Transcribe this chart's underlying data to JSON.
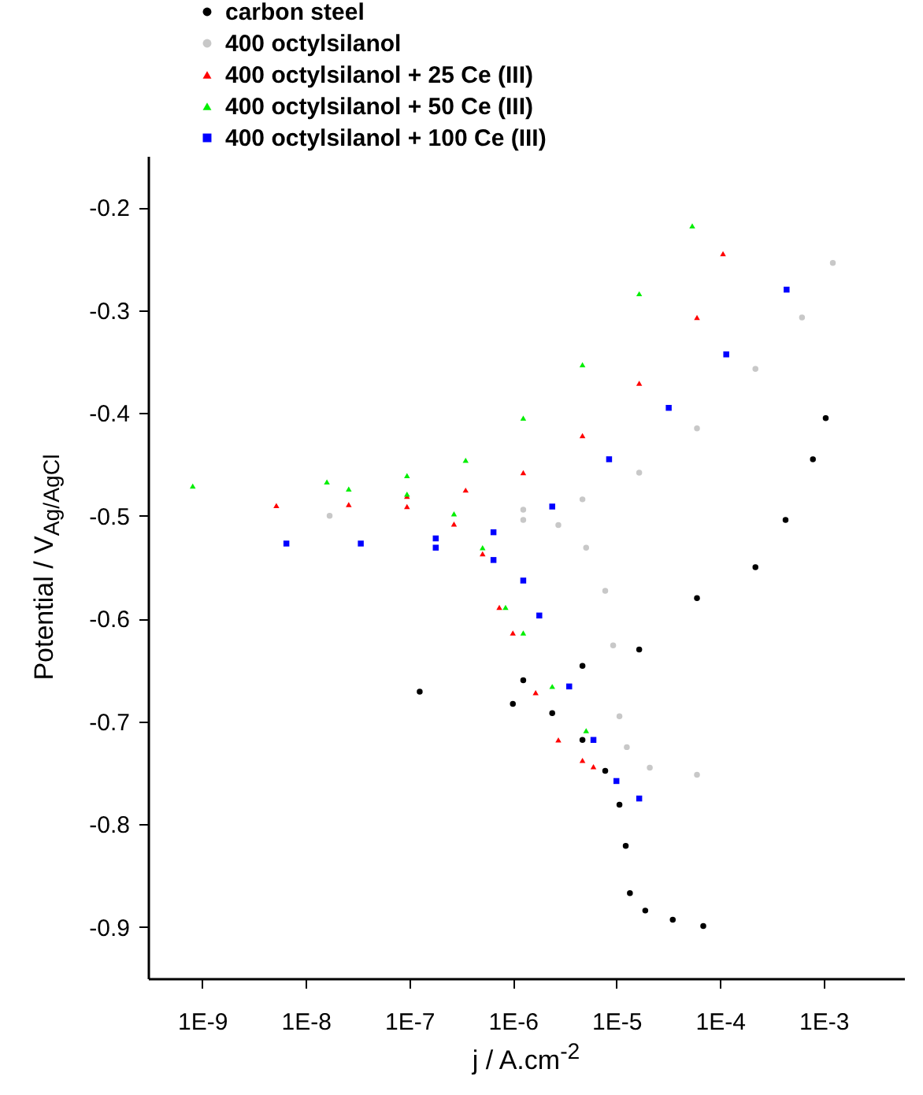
{
  "chart_data": {
    "type": "scatter",
    "xlabel": "j / A.cm$^{-2}$",
    "ylabel": "Potential / V$_{Ag/AgCl}$",
    "log": "x",
    "grid": false,
    "legend": "top",
    "xlim": [
      3e-10,
      0.006
    ],
    "ylim": [
      -0.95,
      -0.15
    ],
    "xticks": [
      {
        "value": 1e-09,
        "label": "1E-9"
      },
      {
        "value": 1e-08,
        "label": "1E-8"
      },
      {
        "value": 1e-07,
        "label": "1E-7"
      },
      {
        "value": 1e-06,
        "label": "1E-6"
      },
      {
        "value": 1e-05,
        "label": "1E-5"
      },
      {
        "value": 0.0001,
        "label": "1E-4"
      },
      {
        "value": 0.001,
        "label": "1E-3"
      }
    ],
    "yticks": [
      {
        "value": -0.9,
        "label": "-0.9"
      },
      {
        "value": -0.8,
        "label": "-0.8"
      },
      {
        "value": -0.7,
        "label": "-0.7"
      },
      {
        "value": -0.6,
        "label": "-0.6"
      },
      {
        "value": -0.5,
        "label": "-0.5"
      },
      {
        "value": -0.4,
        "label": "-0.4"
      },
      {
        "value": -0.3,
        "label": "-0.3"
      },
      {
        "value": -0.2,
        "label": "-0.2"
      }
    ],
    "series": [
      {
        "name": "carbon steel",
        "color": "#000000",
        "marker": "circle",
        "x": [
          6.9e-05,
          3.5e-05,
          1.9e-05,
          1.35e-05,
          1.23e-05,
          1.07e-05,
          7.8e-06,
          4.7e-06,
          2.4e-06,
          1e-06,
          1.26e-07,
          1.26e-06,
          4.7e-06,
          1.66e-05,
          6e-05,
          0.00022,
          0.00043,
          0.00079,
          0.00105
        ],
        "values": [
          -0.899,
          -0.893,
          -0.884,
          -0.867,
          -0.821,
          -0.781,
          -0.748,
          -0.718,
          -0.692,
          -0.683,
          -0.671,
          -0.66,
          -0.646,
          -0.63,
          -0.58,
          -0.55,
          -0.504,
          -0.445,
          -0.405
        ]
      },
      {
        "name": "400 octylsilanol",
        "color": "#c8c8c8",
        "marker": "circle",
        "x": [
          6e-05,
          2.1e-05,
          1.26e-05,
          1.07e-05,
          9.3e-06,
          7.8e-06,
          5.1e-06,
          2.75e-06,
          1.26e-06,
          1.7e-08,
          1.26e-06,
          4.7e-06,
          1.66e-05,
          6e-05,
          0.00022,
          0.00062,
          0.00123
        ],
        "values": [
          -0.752,
          -0.745,
          -0.725,
          -0.695,
          -0.626,
          -0.573,
          -0.531,
          -0.509,
          -0.504,
          -0.5,
          -0.494,
          -0.484,
          -0.458,
          -0.415,
          -0.357,
          -0.307,
          -0.254
        ]
      },
      {
        "name": "400 octylsilanol + 25 Ce (III)",
        "color": "#ff0000",
        "marker": "triangle",
        "x": [
          6e-06,
          4.7e-06,
          2.75e-06,
          1.66e-06,
          1e-06,
          7.4e-07,
          5.1e-07,
          2.7e-07,
          9.5e-08,
          2.6e-08,
          5.2e-09,
          9.5e-08,
          3.5e-07,
          1.26e-06,
          4.7e-06,
          1.66e-05,
          6e-05,
          0.000107
        ],
        "values": [
          -0.744,
          -0.738,
          -0.718,
          -0.672,
          -0.614,
          -0.589,
          -0.537,
          -0.508,
          -0.491,
          -0.489,
          -0.49,
          -0.481,
          -0.475,
          -0.458,
          -0.422,
          -0.371,
          -0.307,
          -0.245
        ]
      },
      {
        "name": "400 octylsilanol + 50 Ce (III)",
        "color": "#00ee00",
        "marker": "triangle",
        "x": [
          5.1e-06,
          2.4e-06,
          1.26e-06,
          8.5e-07,
          5.1e-07,
          2.7e-07,
          9.5e-08,
          2.6e-08,
          8.1e-10,
          1.6e-08,
          9.5e-08,
          3.5e-07,
          1.26e-06,
          4.7e-06,
          1.66e-05,
          5.4e-05
        ],
        "values": [
          -0.709,
          -0.666,
          -0.614,
          -0.589,
          -0.531,
          -0.498,
          -0.479,
          -0.474,
          -0.471,
          -0.467,
          -0.461,
          -0.446,
          -0.405,
          -0.353,
          -0.284,
          -0.218
        ]
      },
      {
        "name": "400 octylsilanol + 100 Ce (III)",
        "color": "#0000ff",
        "marker": "square",
        "x": [
          1.66e-05,
          1e-05,
          6e-06,
          3.5e-06,
          1.8e-06,
          1.26e-06,
          6.5e-07,
          1.8e-07,
          6.5e-09,
          3.4e-08,
          1.8e-07,
          6.5e-07,
          2.4e-06,
          8.5e-06,
          3.2e-05,
          0.000115,
          0.00044
        ],
        "values": [
          -0.775,
          -0.758,
          -0.718,
          -0.666,
          -0.597,
          -0.563,
          -0.543,
          -0.531,
          -0.527,
          -0.527,
          -0.522,
          -0.516,
          -0.491,
          -0.445,
          -0.395,
          -0.343,
          -0.28
        ]
      }
    ]
  }
}
